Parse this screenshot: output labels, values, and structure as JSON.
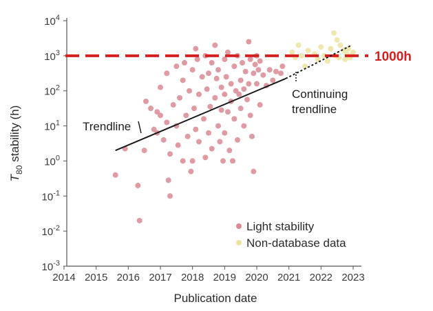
{
  "chart_data": {
    "type": "scatter",
    "title": "",
    "xlabel": "Publication date",
    "ylabel_main": "T",
    "ylabel_sub": "80",
    "ylabel_rest": " stability (h)",
    "x_ticks": [
      "2014",
      "2015",
      "2016",
      "2017",
      "2018",
      "2019",
      "2020",
      "2021",
      "2022",
      "2023"
    ],
    "y_ticks": [
      {
        "base": "10",
        "exp": "-3"
      },
      {
        "base": "10",
        "exp": "-2"
      },
      {
        "base": "10",
        "exp": "-1"
      },
      {
        "base": "10",
        "exp": "0"
      },
      {
        "base": "10",
        "exp": "1"
      },
      {
        "base": "10",
        "exp": "2"
      },
      {
        "base": "10",
        "exp": "3"
      },
      {
        "base": "10",
        "exp": "4"
      }
    ],
    "xlim": [
      2014,
      2023.3
    ],
    "ylim_log10": [
      -3,
      4
    ],
    "y_scale": "log",
    "grid": false,
    "legend_position": "bottom-right",
    "series": [
      {
        "name": "Light stability",
        "color": "#d98a93",
        "points": [
          [
            2015.6,
            -0.4
          ],
          [
            2015.9,
            0.35
          ],
          [
            2016.3,
            -0.7
          ],
          [
            2016.35,
            -1.7
          ],
          [
            2016.5,
            0.3
          ],
          [
            2016.55,
            1.7
          ],
          [
            2016.7,
            1.5
          ],
          [
            2016.8,
            0.9
          ],
          [
            2016.9,
            1.4
          ],
          [
            2016.9,
            0.8
          ],
          [
            2017.0,
            2.1
          ],
          [
            2017.0,
            1.3
          ],
          [
            2017.1,
            0.6
          ],
          [
            2017.2,
            2.5
          ],
          [
            2017.2,
            1.1
          ],
          [
            2017.25,
            -0.55
          ],
          [
            2017.3,
            -1.0
          ],
          [
            2017.3,
            0.2
          ],
          [
            2017.4,
            1.6
          ],
          [
            2017.5,
            2.7
          ],
          [
            2017.5,
            1.0
          ],
          [
            2017.55,
            0.45
          ],
          [
            2017.6,
            1.8
          ],
          [
            2017.7,
            2.3
          ],
          [
            2017.7,
            0.0
          ],
          [
            2017.75,
            2.8
          ],
          [
            2017.8,
            1.3
          ],
          [
            2017.85,
            0.7
          ],
          [
            2017.9,
            2.0
          ],
          [
            2017.95,
            -0.3
          ],
          [
            2018.0,
            2.6
          ],
          [
            2018.0,
            0.0
          ],
          [
            2018.05,
            1.5
          ],
          [
            2018.1,
            3.2
          ],
          [
            2018.1,
            0.9
          ],
          [
            2018.15,
            2.9
          ],
          [
            2018.2,
            1.9
          ],
          [
            2018.2,
            0.55
          ],
          [
            2018.3,
            2.4
          ],
          [
            2018.35,
            1.2
          ],
          [
            2018.4,
            3.0
          ],
          [
            2018.4,
            0.1
          ],
          [
            2018.45,
            2.05
          ],
          [
            2018.5,
            2.5
          ],
          [
            2018.5,
            0.8
          ],
          [
            2018.55,
            1.55
          ],
          [
            2018.6,
            2.8
          ],
          [
            2018.6,
            0.35
          ],
          [
            2018.7,
            3.3
          ],
          [
            2018.7,
            1.8
          ],
          [
            2018.75,
            2.35
          ],
          [
            2018.8,
            1.0
          ],
          [
            2018.8,
            2.6
          ],
          [
            2018.85,
            0.55
          ],
          [
            2018.9,
            2.1
          ],
          [
            2018.9,
            1.45
          ],
          [
            2018.95,
            0.0
          ],
          [
            2019.0,
            2.9
          ],
          [
            2019.0,
            1.9
          ],
          [
            2019.0,
            0.8
          ],
          [
            2019.05,
            2.4
          ],
          [
            2019.1,
            1.4
          ],
          [
            2019.1,
            3.1
          ],
          [
            2019.15,
            0.3
          ],
          [
            2019.2,
            2.2
          ],
          [
            2019.2,
            1.7
          ],
          [
            2019.25,
            0.0
          ],
          [
            2019.3,
            2.7
          ],
          [
            2019.3,
            1.2
          ],
          [
            2019.35,
            2.0
          ],
          [
            2019.4,
            3.0
          ],
          [
            2019.4,
            0.6
          ],
          [
            2019.45,
            1.9
          ],
          [
            2019.5,
            2.3
          ],
          [
            2019.5,
            1.5
          ],
          [
            2019.55,
            2.8
          ],
          [
            2019.6,
            2.05
          ],
          [
            2019.6,
            1.0
          ],
          [
            2019.65,
            2.55
          ],
          [
            2019.7,
            1.75
          ],
          [
            2019.75,
            3.4
          ],
          [
            2019.75,
            2.2
          ],
          [
            2019.8,
            2.9
          ],
          [
            2019.8,
            1.3
          ],
          [
            2019.85,
            0.7
          ],
          [
            2019.9,
            2.5
          ],
          [
            2019.9,
            -0.3
          ],
          [
            2019.95,
            2.75
          ],
          [
            2020.0,
            3.0
          ],
          [
            2020.0,
            2.2
          ],
          [
            2020.05,
            2.6
          ],
          [
            2020.1,
            1.6
          ],
          [
            2020.1,
            2.85
          ],
          [
            2020.2,
            2.45
          ],
          [
            2020.3,
            2.15
          ],
          [
            2020.4,
            2.6
          ],
          [
            2020.5,
            2.3
          ],
          [
            2020.6,
            2.55
          ],
          [
            2020.75,
            2.5
          ],
          [
            2020.8,
            2.7
          ]
        ]
      },
      {
        "name": "Non-database data",
        "color": "#ece3a2",
        "points": [
          [
            2021.1,
            3.1
          ],
          [
            2021.2,
            2.95
          ],
          [
            2021.3,
            3.3
          ],
          [
            2021.4,
            3.0
          ],
          [
            2021.5,
            2.7
          ],
          [
            2021.6,
            3.15
          ],
          [
            2021.8,
            3.05
          ],
          [
            2021.9,
            2.9
          ],
          [
            2022.0,
            3.25
          ],
          [
            2022.1,
            3.0
          ],
          [
            2022.2,
            2.85
          ],
          [
            2022.3,
            3.2
          ],
          [
            2022.4,
            3.65
          ],
          [
            2022.45,
            3.0
          ],
          [
            2022.5,
            3.45
          ],
          [
            2022.55,
            2.95
          ],
          [
            2022.6,
            3.3
          ],
          [
            2022.7,
            3.15
          ],
          [
            2022.75,
            2.9
          ],
          [
            2022.8,
            3.05
          ],
          [
            2022.85,
            3.2
          ],
          [
            2022.9,
            2.95
          ],
          [
            2022.95,
            3.0
          ],
          [
            2023.0,
            3.1
          ]
        ]
      }
    ],
    "trendline": {
      "label": "Trendline",
      "from": [
        2015.6,
        0.3
      ],
      "to": [
        2020.9,
        2.35
      ]
    },
    "continuing_trendline": {
      "label_line1": "Continuing",
      "label_line2": "trendline",
      "from": [
        2020.9,
        2.35
      ],
      "to": [
        2022.95,
        3.3
      ]
    },
    "reference_line": {
      "label": "1000h",
      "y_log10": 3,
      "color": "#d42020"
    }
  }
}
